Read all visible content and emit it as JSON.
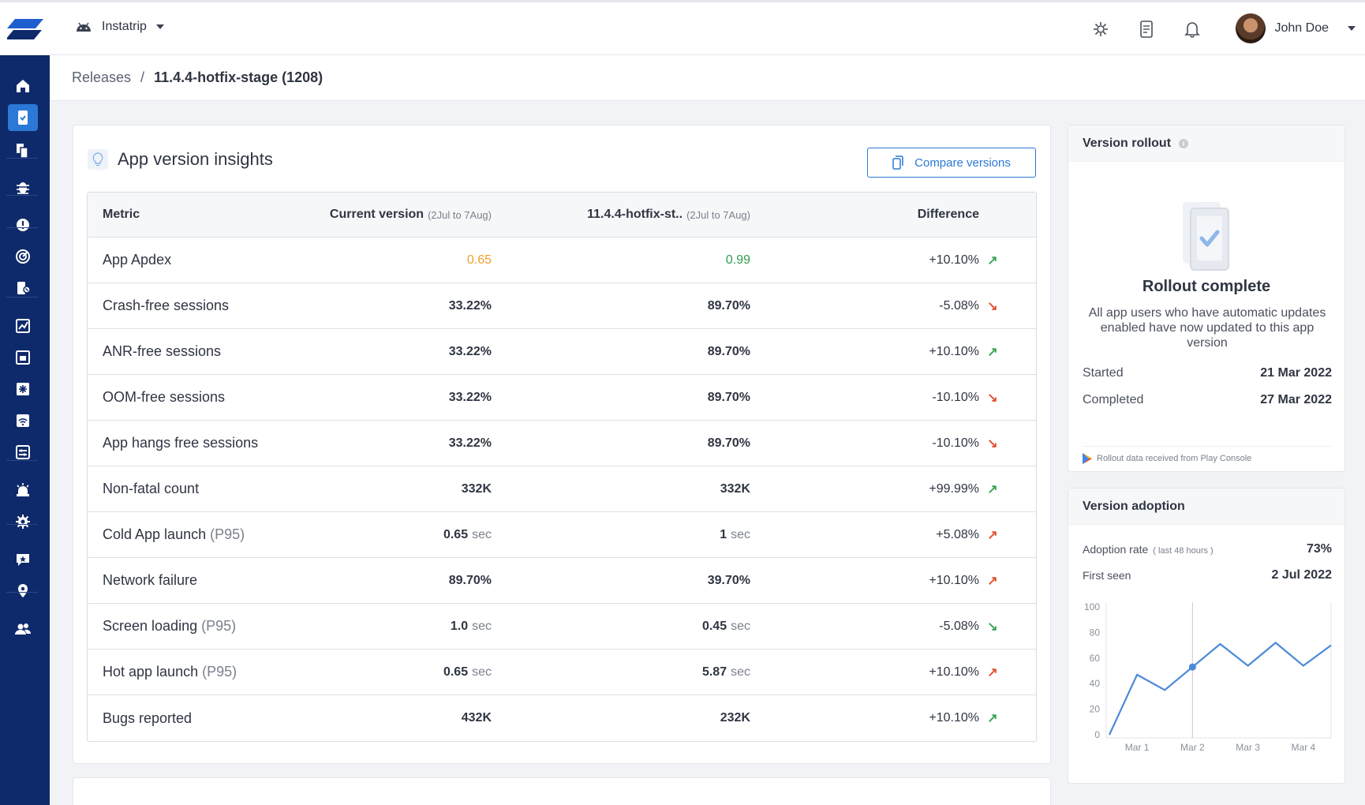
{
  "header": {
    "app_name": "Instatrip",
    "user_name": "John Doe"
  },
  "breadcrumb": {
    "root": "Releases",
    "separator": "/",
    "current": "11.4.4-hotfix-stage (1208)"
  },
  "insights": {
    "title": "App version insights",
    "compare_button": "Compare versions",
    "columns": {
      "metric": "Metric",
      "current": "Current version",
      "current_range": "(2Jul to 7Aug)",
      "version": "11.4.4-hotfix-st..",
      "version_range": "(2Jul to 7Aug)",
      "difference": "Difference"
    },
    "rows": [
      {
        "metric": "App Apdex",
        "suffix": "",
        "cur": "0.65",
        "cur_unit": "",
        "new": "0.99",
        "new_unit": "",
        "diff": "+10.10%",
        "arrow": "↗",
        "arrow_color": "#3aa655",
        "cur_color": "#f0a22a",
        "new_color": "#2e9e4f",
        "plain": true
      },
      {
        "metric": "Crash-free sessions",
        "suffix": "",
        "cur": "33.22%",
        "cur_unit": "",
        "new": "89.70%",
        "new_unit": "",
        "diff": "-5.08%",
        "arrow": "↘",
        "arrow_color": "#e2522e"
      },
      {
        "metric": "ANR-free sessions",
        "suffix": "",
        "cur": "33.22%",
        "cur_unit": "",
        "new": "89.70%",
        "new_unit": "",
        "diff": "+10.10%",
        "arrow": "↗",
        "arrow_color": "#3aa655"
      },
      {
        "metric": "OOM-free sessions",
        "suffix": "",
        "cur": "33.22%",
        "cur_unit": "",
        "new": "89.70%",
        "new_unit": "",
        "diff": "-10.10%",
        "arrow": "↘",
        "arrow_color": "#e2522e"
      },
      {
        "metric": "App hangs free sessions",
        "suffix": "",
        "cur": "33.22%",
        "cur_unit": "",
        "new": "89.70%",
        "new_unit": "",
        "diff": "-10.10%",
        "arrow": "↘",
        "arrow_color": "#e2522e"
      },
      {
        "metric": "Non-fatal count",
        "suffix": "",
        "cur": "332K",
        "cur_unit": "",
        "new": "332K",
        "new_unit": "",
        "diff": "+99.99%",
        "arrow": "↗",
        "arrow_color": "#3aa655"
      },
      {
        "metric": "Cold App launch",
        "suffix": "(P95)",
        "cur": "0.65",
        "cur_unit": "sec",
        "new": "1",
        "new_unit": "sec",
        "diff": "+5.08%",
        "arrow": "↗",
        "arrow_color": "#e2522e"
      },
      {
        "metric": "Network failure",
        "suffix": "",
        "cur": "89.70%",
        "cur_unit": "",
        "new": "39.70%",
        "new_unit": "",
        "diff": "+10.10%",
        "arrow": "↗",
        "arrow_color": "#e2522e"
      },
      {
        "metric": "Screen loading",
        "suffix": "(P95)",
        "cur": "1.0",
        "cur_unit": "sec",
        "new": "0.45",
        "new_unit": "sec",
        "diff": "-5.08%",
        "arrow": "↘",
        "arrow_color": "#3aa655"
      },
      {
        "metric": "Hot app launch",
        "suffix": "(P95)",
        "cur": "0.65",
        "cur_unit": "sec",
        "new": "5.87",
        "new_unit": "sec",
        "diff": "+10.10%",
        "arrow": "↗",
        "arrow_color": "#e2522e"
      },
      {
        "metric": "Bugs reported",
        "suffix": "",
        "cur": "432K",
        "cur_unit": "",
        "new": "232K",
        "new_unit": "",
        "diff": "+10.10%",
        "arrow": "↗",
        "arrow_color": "#3aa655"
      }
    ]
  },
  "rollout": {
    "title": "Version rollout",
    "status": "Rollout complete",
    "description": "All app users who have automatic updates enabled have now updated to this app version",
    "started_label": "Started",
    "started_value": "21 Mar 2022",
    "completed_label": "Completed",
    "completed_value": "27 Mar 2022",
    "footnote": "Rollout data received from Play Console"
  },
  "adoption": {
    "title": "Version adoption",
    "rate_label": "Adoption rate",
    "rate_note": "( last 48 hours )",
    "rate_value": "73%",
    "first_seen_label": "First seen",
    "first_seen_value": "2 Jul 2022"
  },
  "chart_data": {
    "type": "line",
    "x": [
      0,
      0.5,
      1.0,
      1.5,
      2.0,
      2.5,
      3.0,
      3.5,
      4.0
    ],
    "values": [
      0,
      47,
      35,
      53,
      71,
      54,
      72,
      54,
      70
    ],
    "categories": [
      "Mar 1",
      "Mar 2",
      "Mar 3",
      "Mar 4"
    ],
    "category_x": [
      0.5,
      1.5,
      2.5,
      3.5
    ],
    "yticks": [
      "100",
      "80",
      "60",
      "40",
      "20",
      "0"
    ],
    "ylim": [
      0,
      100
    ],
    "highlight_index": 3,
    "grid": false,
    "line_color": "#4a8ad8"
  },
  "colors": {
    "sidebar": "#0f2a6b",
    "accent": "#2b78d6",
    "positive": "#3aa655",
    "negative": "#e2522e"
  }
}
